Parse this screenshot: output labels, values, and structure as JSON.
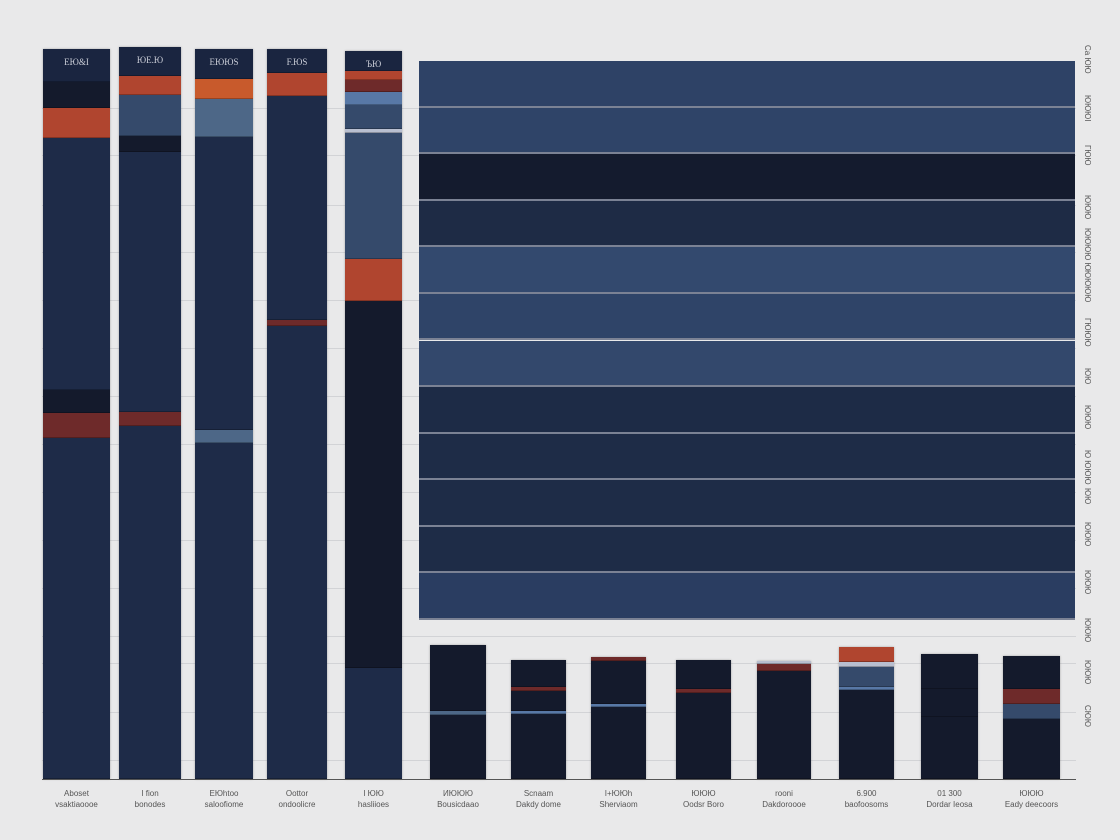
{
  "chart_data": {
    "type": "bar",
    "stacked": true,
    "ylim": [
      0,
      100
    ],
    "grid": true,
    "colors": {
      "navy": "#1e2b48",
      "dark": "#141a2c",
      "orange": "#b0452f",
      "bright_orange": "#c85a2c",
      "red": "#6e2a2a",
      "slate": "#354a6b",
      "steel": "#4d6787",
      "blue": "#5878a6",
      "light": "#b8bfd0",
      "header": "#1a2540"
    },
    "categories": [
      {
        "header": "EЮ&I",
        "label": [
          "Aboset",
          "vsaktiaoooe"
        ]
      },
      {
        "header": "ЮЕ.Ю",
        "label": [
          "I fion",
          "bonodes"
        ]
      },
      {
        "header": "ЕЮЮS",
        "label": [
          "EЮhtoo",
          "saloofiome"
        ]
      },
      {
        "header": "F.ЮS",
        "label": [
          "Oottor",
          "ondoolicre"
        ]
      },
      {
        "header": "ЪЮ",
        "label": [
          "I ЮЮ",
          "hasliioes"
        ]
      },
      {
        "header": "",
        "label": [
          "ИЮЮЮ",
          "Bousicdaao"
        ]
      },
      {
        "header": "",
        "label": [
          "Scnaam",
          "Dakdy dome"
        ]
      },
      {
        "header": "",
        "label": [
          "I+ЮЮh",
          "Sherviaom"
        ]
      },
      {
        "header": "",
        "label": [
          "ЮЮЮ",
          "Oodsr Boro"
        ]
      },
      {
        "header": "",
        "label": [
          "rooni",
          "Dakdoroooe"
        ]
      },
      {
        "header": "",
        "label": [
          "6.900",
          "baofoosoms"
        ]
      },
      {
        "header": "",
        "label": [
          "01 300",
          "Dordar Ieosa"
        ]
      },
      {
        "header": "",
        "label": [
          "ЮЮЮ",
          "Eady deecoors"
        ]
      }
    ],
    "series_segments": [
      [
        [
          4.5,
          "header"
        ],
        [
          3.6,
          "dark"
        ],
        [
          4.1,
          "orange"
        ],
        [
          34.4,
          "navy"
        ],
        [
          3.1,
          "dark"
        ],
        [
          3.4,
          "red"
        ],
        [
          46.6,
          "navy"
        ]
      ],
      [
        [
          4.0,
          "header"
        ],
        [
          2.6,
          "orange"
        ],
        [
          5.5,
          "slate"
        ],
        [
          2.3,
          "dark"
        ],
        [
          35.4,
          "navy"
        ],
        [
          2.0,
          "red"
        ],
        [
          48.2,
          "navy"
        ]
      ],
      [
        [
          4.1,
          "header"
        ],
        [
          2.7,
          "bright_orange"
        ],
        [
          5.2,
          "steel"
        ],
        [
          40.0,
          "navy"
        ],
        [
          1.8,
          "steel"
        ],
        [
          45.9,
          "navy"
        ]
      ],
      [
        [
          3.3,
          "header"
        ],
        [
          3.1,
          "orange"
        ],
        [
          30.6,
          "navy"
        ],
        [
          0.8,
          "red"
        ],
        [
          61.9,
          "navy"
        ]
      ],
      [
        [
          2.7,
          "header"
        ],
        [
          1.2,
          "orange"
        ],
        [
          1.6,
          "red"
        ],
        [
          1.8,
          "blue"
        ],
        [
          3.3,
          "slate"
        ],
        [
          0.5,
          "light"
        ],
        [
          17.3,
          "slate"
        ],
        [
          5.7,
          "orange"
        ],
        [
          50.1,
          "dark"
        ],
        [
          15.2,
          "navy"
        ]
      ],
      [
        [
          9.0,
          "dark"
        ],
        [
          0.6,
          "steel"
        ],
        [
          8.7,
          "dark"
        ]
      ],
      [
        [
          3.7,
          "dark"
        ],
        [
          0.6,
          "red"
        ],
        [
          2.7,
          "dark"
        ],
        [
          0.4,
          "blue"
        ],
        [
          8.9,
          "dark"
        ]
      ],
      [
        [
          0.6,
          "red"
        ],
        [
          5.8,
          "dark"
        ],
        [
          0.5,
          "blue"
        ],
        [
          9.8,
          "dark"
        ]
      ],
      [
        [
          4.0,
          "dark"
        ],
        [
          0.6,
          "red"
        ],
        [
          11.7,
          "dark"
        ]
      ],
      [
        [
          0.4,
          "light"
        ],
        [
          1.0,
          "red"
        ],
        [
          14.7,
          "dark"
        ]
      ],
      [
        [
          2.0,
          "orange"
        ],
        [
          0.7,
          "light"
        ],
        [
          2.8,
          "slate"
        ],
        [
          0.4,
          "blue"
        ],
        [
          12.1,
          "dark"
        ]
      ],
      [
        [
          4.8,
          "dark"
        ],
        [
          3.9,
          "dark"
        ],
        [
          8.4,
          "dark"
        ]
      ],
      [
        [
          4.5,
          "dark"
        ],
        [
          2.1,
          "red"
        ],
        [
          2.0,
          "slate"
        ],
        [
          8.2,
          "dark"
        ]
      ]
    ],
    "panel_bars": {
      "count": 12,
      "colors": [
        "#2e4266",
        "#2f4468",
        "#141b2e",
        "#1e2b45",
        "#33496e",
        "#2f4468",
        "#33486c",
        "#1d2b46",
        "#1e2c47",
        "#1e2c47",
        "#1e2c47",
        "#2a3d61"
      ]
    },
    "right_labels": [
      "Ca ЮЮ",
      "ЮЮЮI",
      "ГЮЮ",
      "ЮЮЮ",
      "ЮЮЮЮ Ю",
      "ЮЮЮЮ",
      "ГЮЮЮ",
      "ЮЮ",
      "ЮЮЮ",
      "Ю ЮЮЮ",
      "ЮЮ",
      "ЮЮЮ",
      "ЮЮЮ",
      "ЮЮЮ",
      "ЮЮЮ",
      "CЮЮ"
    ]
  }
}
